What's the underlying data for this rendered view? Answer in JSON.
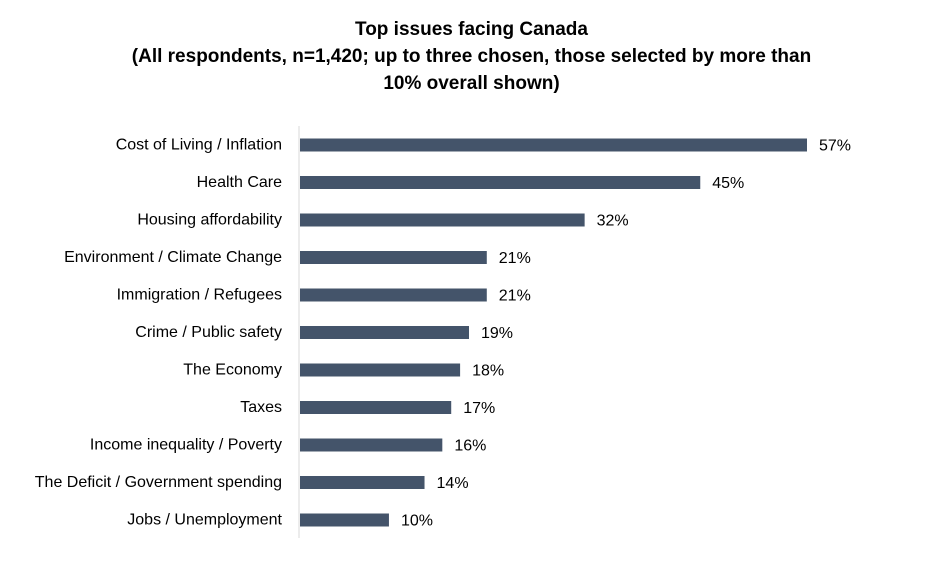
{
  "chart_data": {
    "type": "bar",
    "orientation": "horizontal",
    "title_lines": [
      "Top issues facing Canada",
      "(All respondents, n=1,420; up to three chosen, those selected by more than",
      "10% overall shown)"
    ],
    "categories": [
      "Cost of Living / Inflation",
      "Health Care",
      "Housing affordability",
      "Environment / Climate Change",
      "Immigration / Refugees",
      "Crime / Public safety",
      "The Economy",
      "Taxes",
      "Income inequality / Poverty",
      "The Deficit / Government spending",
      "Jobs / Unemployment"
    ],
    "values": [
      57,
      45,
      32,
      21,
      21,
      19,
      18,
      17,
      16,
      14,
      10
    ],
    "value_labels": [
      "57%",
      "45%",
      "32%",
      "21%",
      "21%",
      "19%",
      "18%",
      "17%",
      "16%",
      "14%",
      "10%"
    ],
    "unit": "%",
    "xlim": [
      0,
      60
    ],
    "bar_color": "#44546a",
    "axis_color": "#d9d9d9",
    "grid": false,
    "legend": "none"
  }
}
